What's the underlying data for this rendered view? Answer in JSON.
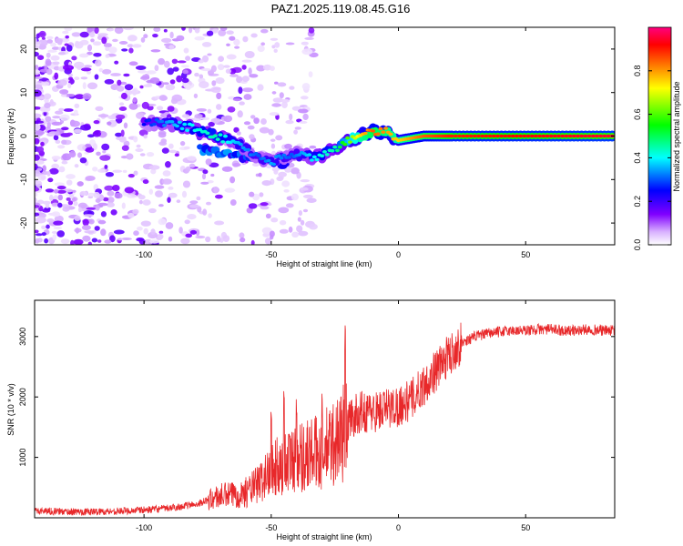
{
  "title": "PAZ1.2025.119.08.45.G16",
  "chart_data": [
    {
      "type": "heatmap",
      "xlabel": "Height of straight line (km)",
      "ylabel": "Frequency (Hz)",
      "xlim": [
        -143,
        85
      ],
      "ylim": [
        -25,
        25
      ],
      "x_ticks": [
        -100,
        -50,
        0,
        50
      ],
      "y_ticks": [
        -20,
        -10,
        0,
        10,
        20
      ],
      "colorbar": {
        "label": "Normalized spectral amplitude",
        "range": [
          0,
          1
        ],
        "ticks": [
          0.0,
          0.2,
          0.4,
          0.6,
          0.8
        ],
        "colormap": [
          "#ffffff",
          "#8000ff",
          "#0000ff",
          "#00ffff",
          "#00ff00",
          "#ffff00",
          "#ff8000",
          "#ff0000",
          "#ff0080"
        ]
      },
      "ridge": [
        {
          "x": -100,
          "freq": 3,
          "amp": 0.25
        },
        {
          "x": -90,
          "freq": 3,
          "amp": 0.35
        },
        {
          "x": -82,
          "freq": 2,
          "amp": 0.4
        },
        {
          "x": -72,
          "freq": 0,
          "amp": 0.45
        },
        {
          "x": -62,
          "freq": -2,
          "amp": 0.35
        },
        {
          "x": -55,
          "freq": -5,
          "amp": 0.3
        },
        {
          "x": -50,
          "freq": -6,
          "amp": 0.35
        },
        {
          "x": -42,
          "freq": -4,
          "amp": 0.3
        },
        {
          "x": -33,
          "freq": -5,
          "amp": 0.4
        },
        {
          "x": -25,
          "freq": -3,
          "amp": 0.45
        },
        {
          "x": -20,
          "freq": -1,
          "amp": 0.6
        },
        {
          "x": -15,
          "freq": 0,
          "amp": 0.75
        },
        {
          "x": -10,
          "freq": 1,
          "amp": 0.85
        },
        {
          "x": -5,
          "freq": 1,
          "amp": 0.8
        },
        {
          "x": 0,
          "freq": -1,
          "amp": 0.75
        },
        {
          "x": 10,
          "freq": 0,
          "amp": 0.85
        },
        {
          "x": 20,
          "freq": 0,
          "amp": 0.9
        },
        {
          "x": 85,
          "freq": 0,
          "amp": 0.95
        }
      ]
    },
    {
      "type": "line",
      "xlabel": "Height of straight line (km)",
      "ylabel": "SNR (10 * v/v)",
      "xlim": [
        -143,
        85
      ],
      "ylim": [
        0,
        3600
      ],
      "x_ticks": [
        -100,
        -50,
        0,
        50
      ],
      "y_ticks": [
        1000,
        2000,
        3000
      ],
      "color": "#e8282a",
      "series": [
        {
          "x": [
            -143,
            -130,
            -120,
            -110,
            -100,
            -90,
            -80,
            -75,
            -70,
            -65,
            -60,
            -55,
            -50,
            -45,
            -40,
            -35,
            -30,
            -25,
            -22,
            -20,
            -15,
            -10,
            -5,
            0,
            5,
            10,
            15,
            20,
            25,
            30,
            35,
            40,
            45,
            50,
            55,
            60,
            65,
            70,
            75,
            80,
            85
          ],
          "values": [
            120,
            100,
            100,
            110,
            130,
            160,
            220,
            290,
            360,
            380,
            420,
            560,
            780,
            900,
            1000,
            1050,
            1100,
            1250,
            1400,
            1600,
            1750,
            1750,
            1800,
            1850,
            1950,
            2200,
            2450,
            2700,
            2900,
            3000,
            3050,
            3080,
            3100,
            3100,
            3120,
            3120,
            3100,
            3100,
            3120,
            3100,
            3100
          ]
        }
      ],
      "spikes": [
        {
          "x": -50,
          "value": 1900
        },
        {
          "x": -45,
          "value": 2200
        },
        {
          "x": -40,
          "value": 2000
        },
        {
          "x": -30,
          "value": 2100
        },
        {
          "x": -21,
          "value": 3200
        }
      ]
    }
  ]
}
